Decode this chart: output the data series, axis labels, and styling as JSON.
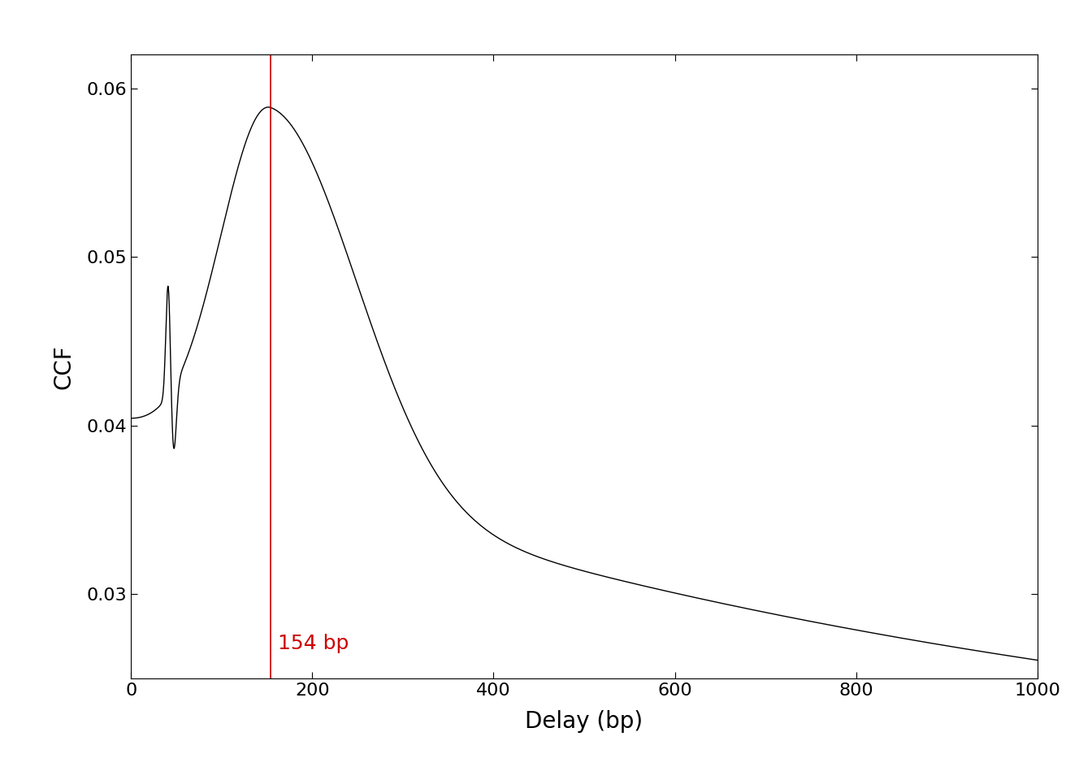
{
  "xlabel": "Delay (bp)",
  "ylabel": "CCF",
  "xlim": [
    0,
    1000
  ],
  "ylim": [
    0.025,
    0.062
  ],
  "xticks": [
    0,
    200,
    400,
    600,
    800,
    1000
  ],
  "yticks": [
    0.03,
    0.04,
    0.05,
    0.06
  ],
  "vline_x": 154,
  "vline_color": "#cc0000",
  "vline_label": "154 bp",
  "line_color": "#000000",
  "background_color": "#ffffff",
  "label_fontsize": 20,
  "tick_fontsize": 16,
  "annotation_fontsize": 18
}
